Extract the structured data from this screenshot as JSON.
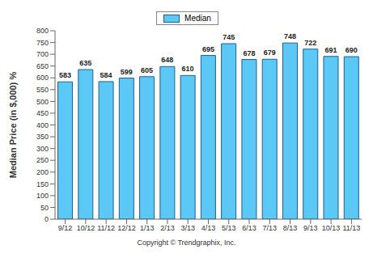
{
  "chart_data": {
    "type": "bar",
    "categories": [
      "9/12",
      "10/12",
      "11/12",
      "12/12",
      "1/13",
      "2/13",
      "3/13",
      "4/13",
      "5/13",
      "6/13",
      "7/13",
      "8/13",
      "9/13",
      "10/13",
      "11/13"
    ],
    "series": [
      {
        "name": "Median",
        "color": "#5bc8f5",
        "values": [
          583,
          635,
          584,
          599,
          605,
          648,
          610,
          695,
          745,
          678,
          679,
          748,
          722,
          691,
          690
        ]
      }
    ],
    "y_label": "Median Price (in $,000) %",
    "ylim": [
      0,
      800
    ],
    "yticks": [
      0,
      50,
      100,
      150,
      200,
      250,
      300,
      350,
      400,
      450,
      500,
      550,
      600,
      650,
      700,
      750,
      800
    ],
    "grid": false,
    "legend": "top",
    "data_labels": true,
    "annotations": [
      "Copyright © Trendgraphix, Inc."
    ]
  }
}
